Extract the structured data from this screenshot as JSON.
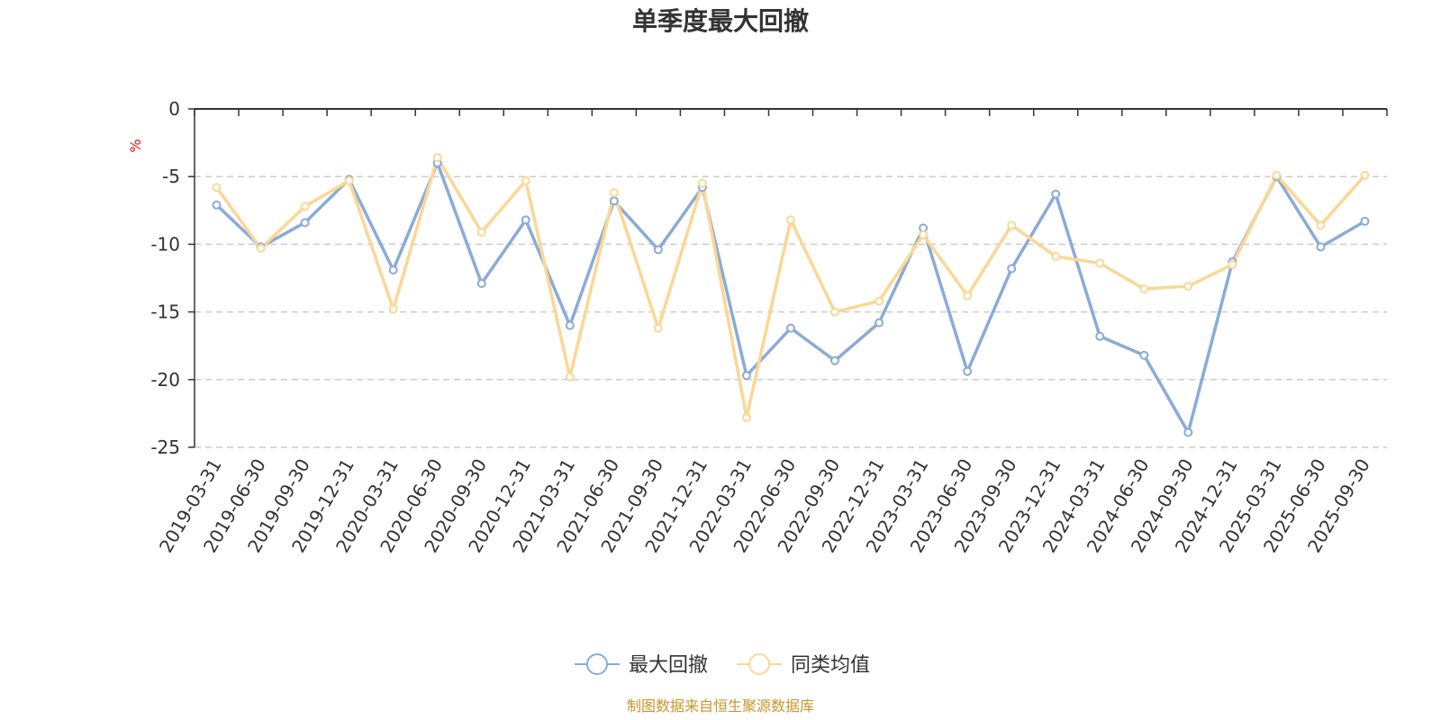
{
  "chart_data": {
    "type": "line",
    "title": "单季度最大回撤",
    "ylabel": "%",
    "ylim": [
      -25,
      0
    ],
    "yticks": [
      0,
      -5,
      -10,
      -15,
      -20,
      -25
    ],
    "grid": true,
    "legend_position": "bottom",
    "categories": [
      "2019-03-31",
      "2019-06-30",
      "2019-09-30",
      "2019-12-31",
      "2020-03-31",
      "2020-06-30",
      "2020-09-30",
      "2020-12-31",
      "2021-03-31",
      "2021-06-30",
      "2021-09-30",
      "2021-12-31",
      "2022-03-31",
      "2022-06-30",
      "2022-09-30",
      "2022-12-31",
      "2023-03-31",
      "2023-06-30",
      "2023-09-30",
      "2023-12-31",
      "2024-03-31",
      "2024-06-30",
      "2024-09-30",
      "2024-12-31",
      "2025-03-31",
      "2025-06-30",
      "2025-09-30"
    ],
    "series": [
      {
        "name": "最大回撤",
        "color": "#8aabd8",
        "values": [
          -7.1,
          -10.2,
          -8.4,
          -5.2,
          -11.9,
          -4.0,
          -12.9,
          -8.2,
          -16.0,
          -6.8,
          -10.4,
          -5.8,
          -19.7,
          -16.2,
          -18.6,
          -15.8,
          -8.8,
          -19.4,
          -11.8,
          -6.3,
          -16.8,
          -18.2,
          -23.9,
          -11.3,
          -5.0,
          -10.2,
          -8.3
        ]
      },
      {
        "name": "同类均值",
        "color": "#fbd795",
        "values": [
          -5.8,
          -10.3,
          -7.2,
          -5.3,
          -14.8,
          -3.6,
          -9.1,
          -5.3,
          -19.8,
          -6.2,
          -16.2,
          -5.5,
          -22.8,
          -8.2,
          -15.0,
          -14.2,
          -9.3,
          -13.8,
          -8.6,
          -10.9,
          -11.4,
          -13.3,
          -13.1,
          -11.5,
          -4.9,
          -8.6,
          -4.9
        ]
      }
    ]
  },
  "source_note": "制图数据来自恒生聚源数据库"
}
